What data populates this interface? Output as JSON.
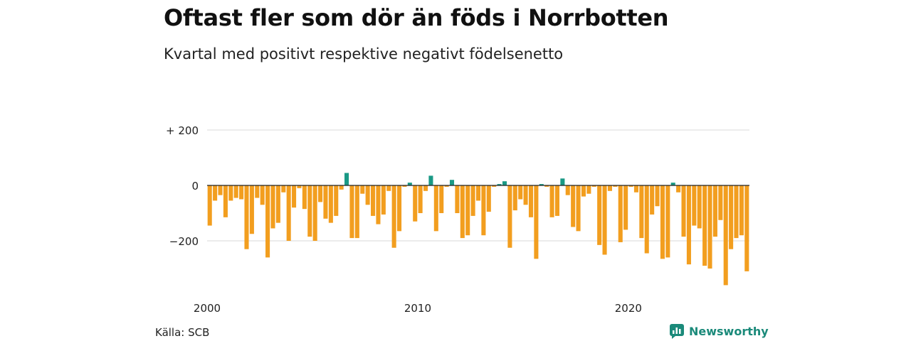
{
  "title": "Oftast fler som dör än föds i Norrbotten",
  "subtitle": "Kvartal med positivt respektive negativt födelsenetto",
  "source": "Källa: SCB",
  "brand": {
    "name": "Newsworthy",
    "icon": "newsworthy-logo-icon"
  },
  "colors": {
    "positive": "#1a9985",
    "negative": "#f29e1f",
    "grid": "#d9d9d9",
    "zero_line": "#222222"
  },
  "chart_data": {
    "type": "bar",
    "x_start": 2000.0,
    "x_step": 0.25,
    "xticks": [
      2000,
      2010,
      2020
    ],
    "ylim": [
      -370,
      250
    ],
    "yticks": [
      {
        "value": 200,
        "label": "+ 200"
      },
      {
        "value": 0,
        "label": "0"
      },
      {
        "value": -200,
        "label": "−200"
      }
    ],
    "grid": true,
    "values": [
      -145,
      -55,
      -35,
      -115,
      -55,
      -45,
      -50,
      -230,
      -175,
      -45,
      -70,
      -260,
      -155,
      -135,
      -25,
      -200,
      -80,
      -10,
      -85,
      -185,
      -200,
      -60,
      -120,
      -135,
      -110,
      -15,
      45,
      -190,
      -190,
      -30,
      -70,
      -110,
      -140,
      -105,
      -20,
      -225,
      -165,
      -5,
      10,
      -130,
      -100,
      -20,
      35,
      -165,
      -100,
      -5,
      20,
      -100,
      -190,
      -180,
      -110,
      -55,
      -180,
      -95,
      -5,
      5,
      15,
      -225,
      -90,
      -50,
      -70,
      -115,
      -265,
      5,
      -5,
      -115,
      -110,
      25,
      -35,
      -150,
      -165,
      -40,
      -30,
      -5,
      -215,
      -250,
      -20,
      -5,
      -205,
      -160,
      -5,
      -25,
      -190,
      -245,
      -105,
      -75,
      -265,
      -260,
      10,
      -25,
      -185,
      -285,
      -145,
      -155,
      -290,
      -300,
      -185,
      -125,
      -360,
      -230,
      -190,
      -180,
      -310
    ]
  }
}
